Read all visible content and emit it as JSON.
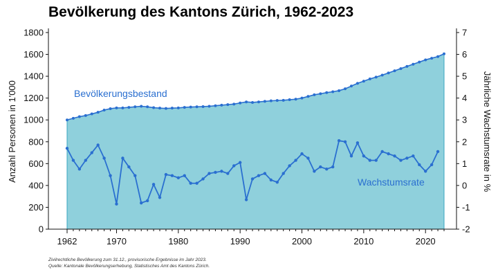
{
  "chart_data": {
    "type": "area",
    "title": "Bevölkerung des Kantons Zürich, 1962-2023",
    "x": [
      1962,
      1963,
      1964,
      1965,
      1966,
      1967,
      1968,
      1969,
      1970,
      1971,
      1972,
      1973,
      1974,
      1975,
      1976,
      1977,
      1978,
      1979,
      1980,
      1981,
      1982,
      1983,
      1984,
      1985,
      1986,
      1987,
      1988,
      1989,
      1990,
      1991,
      1992,
      1993,
      1994,
      1995,
      1996,
      1997,
      1998,
      1999,
      2000,
      2001,
      2002,
      2003,
      2004,
      2005,
      2006,
      2007,
      2008,
      2009,
      2010,
      2011,
      2012,
      2013,
      2014,
      2015,
      2016,
      2017,
      2018,
      2019,
      2020,
      2021,
      2022,
      2023
    ],
    "x_ticks": [
      1970,
      1980,
      1990,
      2000,
      2010,
      2020
    ],
    "x_ticks_labeled": [
      1962,
      1970,
      1980,
      1990,
      2000,
      2010,
      2020
    ],
    "xlim": [
      1962,
      2023
    ],
    "y_left": {
      "label": "Anzahl Personen in 1'000",
      "range": [
        0,
        1800
      ],
      "ticks": [
        0,
        200,
        400,
        600,
        800,
        1000,
        1200,
        1400,
        1600,
        1800
      ]
    },
    "y_right": {
      "label": "Jährliche Wachstumsrate in %",
      "range": [
        -2,
        7
      ],
      "ticks": [
        -2,
        -1,
        0,
        1,
        2,
        3,
        4,
        5,
        6,
        7
      ]
    },
    "series": [
      {
        "name": "Bevölkerungsbestand",
        "axis": "left",
        "style": "area",
        "values": [
          1000,
          1015,
          1030,
          1040,
          1055,
          1070,
          1090,
          1103,
          1110,
          1110,
          1115,
          1120,
          1125,
          1120,
          1112,
          1108,
          1105,
          1108,
          1110,
          1115,
          1118,
          1120,
          1122,
          1125,
          1130,
          1135,
          1140,
          1145,
          1155,
          1165,
          1160,
          1165,
          1170,
          1175,
          1178,
          1180,
          1185,
          1190,
          1200,
          1215,
          1230,
          1240,
          1250,
          1258,
          1268,
          1285,
          1310,
          1335,
          1355,
          1375,
          1392,
          1410,
          1430,
          1450,
          1470,
          1490,
          1510,
          1530,
          1550,
          1565,
          1580,
          1605
        ]
      },
      {
        "name": "Wachstumsrate",
        "axis": "right",
        "style": "line",
        "values": [
          1.7,
          1.15,
          0.75,
          1.15,
          1.5,
          1.85,
          1.25,
          0.45,
          -0.85,
          1.25,
          0.85,
          0.45,
          -0.8,
          -0.7,
          0.05,
          -0.55,
          0.5,
          0.45,
          0.35,
          0.45,
          0.1,
          0.1,
          0.3,
          0.55,
          0.6,
          0.65,
          0.55,
          0.9,
          1.05,
          -0.65,
          0.3,
          0.45,
          0.55,
          0.25,
          0.15,
          0.55,
          0.9,
          1.15,
          1.45,
          1.25,
          0.65,
          0.85,
          0.75,
          0.85,
          2.05,
          2.0,
          1.35,
          1.95,
          1.35,
          1.15,
          1.15,
          1.55,
          1.45,
          1.35,
          1.15,
          1.25,
          1.35,
          0.95,
          0.65,
          0.95,
          1.55,
          null
        ]
      }
    ],
    "colors": {
      "area_fill": "#8fd0dc",
      "area_edge": "#3aa6c0",
      "line": "#2a6fd0",
      "marker": "#2a6fd0"
    },
    "grid": false,
    "footnotes": [
      "Zivilrechtliche Bevölkerung zum 31.12., provisorische Ergebnisse im Jahr 2023.",
      "Quelle: Kantonale Bevölkerungserhebung, Statistisches Amt des Kantons Zürich."
    ]
  }
}
